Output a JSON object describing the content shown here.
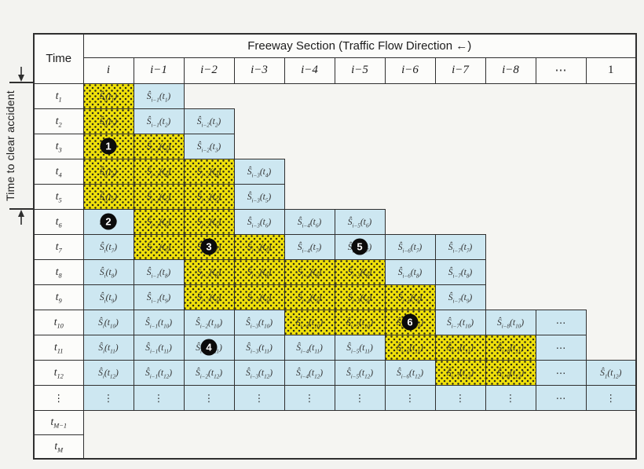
{
  "colors": {
    "bg": "#f3f3f0",
    "line": "#2f2f2f",
    "yellow": "#f0e10a",
    "blue": "#cde7f1",
    "circle_bg": "#0b0b0b",
    "circle_fg": "#ffffff"
  },
  "side_label": {
    "text": "Time to clear accident"
  },
  "glyphs": {
    "shat": "Ŝ",
    "tvar": "t",
    "cdots": "⋯",
    "vdots": "⋮"
  },
  "header": {
    "time_label": "Time",
    "section_label": "Freeway Section (Traffic Flow Direction ←)",
    "columns": [
      {
        "label": "i",
        "italic": true
      },
      {
        "label": "i−1",
        "italic": true
      },
      {
        "label": "i−2",
        "italic": true
      },
      {
        "label": "i−3",
        "italic": true
      },
      {
        "label": "i−4",
        "italic": true
      },
      {
        "label": "i−5",
        "italic": true
      },
      {
        "label": "i−6",
        "italic": true
      },
      {
        "label": "i−7",
        "italic": true
      },
      {
        "label": "i−8",
        "italic": true
      },
      {
        "label": "⋯",
        "italic": false
      },
      {
        "label": "1",
        "italic": false
      }
    ]
  },
  "rows": [
    {
      "id": "t1",
      "time": "t",
      "tsub": "1",
      "cells": [
        {
          "fill": "yellow",
          "kind": "formula",
          "ssub": "i",
          "tsub": "1"
        },
        {
          "fill": "blue",
          "kind": "formula",
          "ssub": "i−1",
          "tsub": "1"
        }
      ]
    },
    {
      "id": "t2",
      "time": "t",
      "tsub": "2",
      "cells": [
        {
          "fill": "yellow",
          "kind": "formula",
          "ssub": "i",
          "tsub": "2"
        },
        {
          "fill": "blue",
          "kind": "formula",
          "ssub": "i−1",
          "tsub": "2"
        },
        {
          "fill": "blue",
          "kind": "formula",
          "ssub": "i−2",
          "tsub": "2"
        }
      ]
    },
    {
      "id": "t3",
      "time": "t",
      "tsub": "3",
      "cells": [
        {
          "fill": "yellow",
          "kind": "formula",
          "ssub": "i",
          "tsub": "3",
          "circle": "1"
        },
        {
          "fill": "yellow",
          "kind": "formula",
          "ssub": "i−1",
          "tsub": "3"
        },
        {
          "fill": "blue",
          "kind": "formula",
          "ssub": "i−2",
          "tsub": "3"
        }
      ]
    },
    {
      "id": "t4",
      "time": "t",
      "tsub": "4",
      "cells": [
        {
          "fill": "yellow",
          "kind": "formula",
          "ssub": "i",
          "tsub": "4"
        },
        {
          "fill": "yellow",
          "kind": "formula",
          "ssub": "i−1",
          "tsub": "4"
        },
        {
          "fill": "yellow",
          "kind": "formula",
          "ssub": "i−2",
          "tsub": "4"
        },
        {
          "fill": "blue",
          "kind": "formula",
          "ssub": "i−3",
          "tsub": "4"
        }
      ]
    },
    {
      "id": "t5",
      "time": "t",
      "tsub": "5",
      "cells": [
        {
          "fill": "yellow",
          "kind": "formula",
          "ssub": "i",
          "tsub": "5"
        },
        {
          "fill": "yellow",
          "kind": "formula",
          "ssub": "i−1",
          "tsub": "5"
        },
        {
          "fill": "yellow",
          "kind": "formula",
          "ssub": "i−2",
          "tsub": "5"
        },
        {
          "fill": "blue",
          "kind": "formula",
          "ssub": "i−3",
          "tsub": "5"
        }
      ]
    },
    {
      "id": "t6",
      "time": "t",
      "tsub": "6",
      "cells": [
        {
          "fill": "blue",
          "kind": "formula",
          "ssub": "i",
          "tsub": "6",
          "circle": "2"
        },
        {
          "fill": "yellow",
          "kind": "formula",
          "ssub": "i−1",
          "tsub": "6"
        },
        {
          "fill": "yellow",
          "kind": "formula",
          "ssub": "i−2",
          "tsub": "6"
        },
        {
          "fill": "blue",
          "kind": "formula",
          "ssub": "i−3",
          "tsub": "6"
        },
        {
          "fill": "blue",
          "kind": "formula",
          "ssub": "i−4",
          "tsub": "6"
        },
        {
          "fill": "blue",
          "kind": "formula",
          "ssub": "i−5",
          "tsub": "6"
        }
      ]
    },
    {
      "id": "t7",
      "time": "t",
      "tsub": "7",
      "cells": [
        {
          "fill": "blue",
          "kind": "formula",
          "ssub": "i",
          "tsub": "7"
        },
        {
          "fill": "yellow",
          "kind": "formula",
          "ssub": "i−1",
          "tsub": "7"
        },
        {
          "fill": "yellow",
          "kind": "formula",
          "ssub": "i−2",
          "tsub": "7",
          "circle": "3"
        },
        {
          "fill": "yellow",
          "kind": "formula",
          "ssub": "i−3",
          "tsub": "7"
        },
        {
          "fill": "blue",
          "kind": "formula",
          "ssub": "i−4",
          "tsub": "7"
        },
        {
          "fill": "blue",
          "kind": "formula",
          "ssub": "i−5",
          "tsub": "7",
          "circle": "5"
        },
        {
          "fill": "blue",
          "kind": "formula",
          "ssub": "i−6",
          "tsub": "7"
        },
        {
          "fill": "blue",
          "kind": "formula",
          "ssub": "i−7",
          "tsub": "7"
        }
      ]
    },
    {
      "id": "t8",
      "time": "t",
      "tsub": "8",
      "cells": [
        {
          "fill": "blue",
          "kind": "formula",
          "ssub": "i",
          "tsub": "8"
        },
        {
          "fill": "blue",
          "kind": "formula",
          "ssub": "i−1",
          "tsub": "8"
        },
        {
          "fill": "yellow",
          "kind": "formula",
          "ssub": "i−2",
          "tsub": "8"
        },
        {
          "fill": "yellow",
          "kind": "formula",
          "ssub": "i−3",
          "tsub": "8"
        },
        {
          "fill": "yellow",
          "kind": "formula",
          "ssub": "i−4",
          "tsub": "8"
        },
        {
          "fill": "yellow",
          "kind": "formula",
          "ssub": "i−5",
          "tsub": "8"
        },
        {
          "fill": "blue",
          "kind": "formula",
          "ssub": "i−6",
          "tsub": "8"
        },
        {
          "fill": "blue",
          "kind": "formula",
          "ssub": "i−7",
          "tsub": "8"
        }
      ]
    },
    {
      "id": "t9",
      "time": "t",
      "tsub": "9",
      "cells": [
        {
          "fill": "blue",
          "kind": "formula",
          "ssub": "i",
          "tsub": "9"
        },
        {
          "fill": "blue",
          "kind": "formula",
          "ssub": "i−1",
          "tsub": "9"
        },
        {
          "fill": "yellow",
          "kind": "formula",
          "ssub": "i−2",
          "tsub": "9"
        },
        {
          "fill": "yellow",
          "kind": "formula",
          "ssub": "i−3",
          "tsub": "9"
        },
        {
          "fill": "yellow",
          "kind": "formula",
          "ssub": "i−4",
          "tsub": "9"
        },
        {
          "fill": "yellow",
          "kind": "formula",
          "ssub": "i−5",
          "tsub": "9"
        },
        {
          "fill": "yellow",
          "kind": "formula",
          "ssub": "i−6",
          "tsub": "9"
        },
        {
          "fill": "blue",
          "kind": "formula",
          "ssub": "i−7",
          "tsub": "9"
        }
      ]
    },
    {
      "id": "t10",
      "time": "t",
      "tsub": "10",
      "cells": [
        {
          "fill": "blue",
          "kind": "formula",
          "ssub": "i",
          "tsub": "10"
        },
        {
          "fill": "blue",
          "kind": "formula",
          "ssub": "i−1",
          "tsub": "10"
        },
        {
          "fill": "blue",
          "kind": "formula",
          "ssub": "i−2",
          "tsub": "10"
        },
        {
          "fill": "blue",
          "kind": "formula",
          "ssub": "i−3",
          "tsub": "10"
        },
        {
          "fill": "yellow",
          "kind": "formula",
          "ssub": "i−4",
          "tsub": "10"
        },
        {
          "fill": "yellow",
          "kind": "formula",
          "ssub": "i−5",
          "tsub": "10"
        },
        {
          "fill": "yellow",
          "kind": "formula",
          "ssub": "i−6",
          "tsub": "10",
          "circle": "6"
        },
        {
          "fill": "blue",
          "kind": "formula",
          "ssub": "i−7",
          "tsub": "10"
        },
        {
          "fill": "blue",
          "kind": "formula",
          "ssub": "i−8",
          "tsub": "10"
        },
        {
          "fill": "blue",
          "kind": "cdots"
        }
      ]
    },
    {
      "id": "t11",
      "time": "t",
      "tsub": "11",
      "cells": [
        {
          "fill": "blue",
          "kind": "formula",
          "ssub": "i",
          "tsub": "11"
        },
        {
          "fill": "blue",
          "kind": "formula",
          "ssub": "i−1",
          "tsub": "11"
        },
        {
          "fill": "blue",
          "kind": "formula",
          "ssub": "i−2",
          "tsub": "11",
          "circle": "4"
        },
        {
          "fill": "blue",
          "kind": "formula",
          "ssub": "i−3",
          "tsub": "11"
        },
        {
          "fill": "blue",
          "kind": "formula",
          "ssub": "i−4",
          "tsub": "11"
        },
        {
          "fill": "blue",
          "kind": "formula",
          "ssub": "i−5",
          "tsub": "11"
        },
        {
          "fill": "yellow",
          "kind": "formula",
          "ssub": "i−6",
          "tsub": "11"
        },
        {
          "fill": "yellow",
          "kind": "formula",
          "ssub": "i−7",
          "tsub": "11"
        },
        {
          "fill": "yellow",
          "kind": "formula",
          "ssub": "i−8",
          "tsub": "11"
        },
        {
          "fill": "blue",
          "kind": "cdots"
        }
      ]
    },
    {
      "id": "t12",
      "time": "t",
      "tsub": "12",
      "cells": [
        {
          "fill": "blue",
          "kind": "formula",
          "ssub": "i",
          "tsub": "12"
        },
        {
          "fill": "blue",
          "kind": "formula",
          "ssub": "i−1",
          "tsub": "12"
        },
        {
          "fill": "blue",
          "kind": "formula",
          "ssub": "i−2",
          "tsub": "12"
        },
        {
          "fill": "blue",
          "kind": "formula",
          "ssub": "i−3",
          "tsub": "12"
        },
        {
          "fill": "blue",
          "kind": "formula",
          "ssub": "i−4",
          "tsub": "12"
        },
        {
          "fill": "blue",
          "kind": "formula",
          "ssub": "i−5",
          "tsub": "12"
        },
        {
          "fill": "blue",
          "kind": "formula",
          "ssub": "i−6",
          "tsub": "12"
        },
        {
          "fill": "yellow",
          "kind": "formula",
          "ssub": "i−7",
          "tsub": "12"
        },
        {
          "fill": "yellow",
          "kind": "formula",
          "ssub": "i−8",
          "tsub": "12"
        },
        {
          "fill": "blue",
          "kind": "cdots"
        },
        {
          "fill": "blue",
          "kind": "formula",
          "ssub": "1",
          "tsub": "12"
        }
      ]
    },
    {
      "id": "dots",
      "time": "⋮",
      "tsub": "",
      "cells": [
        {
          "fill": "blue",
          "kind": "vdots"
        },
        {
          "fill": "blue",
          "kind": "vdots"
        },
        {
          "fill": "blue",
          "kind": "vdots"
        },
        {
          "fill": "blue",
          "kind": "vdots"
        },
        {
          "fill": "blue",
          "kind": "vdots"
        },
        {
          "fill": "blue",
          "kind": "vdots"
        },
        {
          "fill": "blue",
          "kind": "vdots"
        },
        {
          "fill": "blue",
          "kind": "vdots"
        },
        {
          "fill": "blue",
          "kind": "vdots"
        },
        {
          "fill": "blue",
          "kind": "cdots"
        },
        {
          "fill": "blue",
          "kind": "vdots"
        }
      ]
    },
    {
      "id": "tM-1",
      "time": "t",
      "tsub": "M−1",
      "cells": []
    },
    {
      "id": "tM",
      "time": "t",
      "tsub": "M",
      "cells": []
    }
  ]
}
